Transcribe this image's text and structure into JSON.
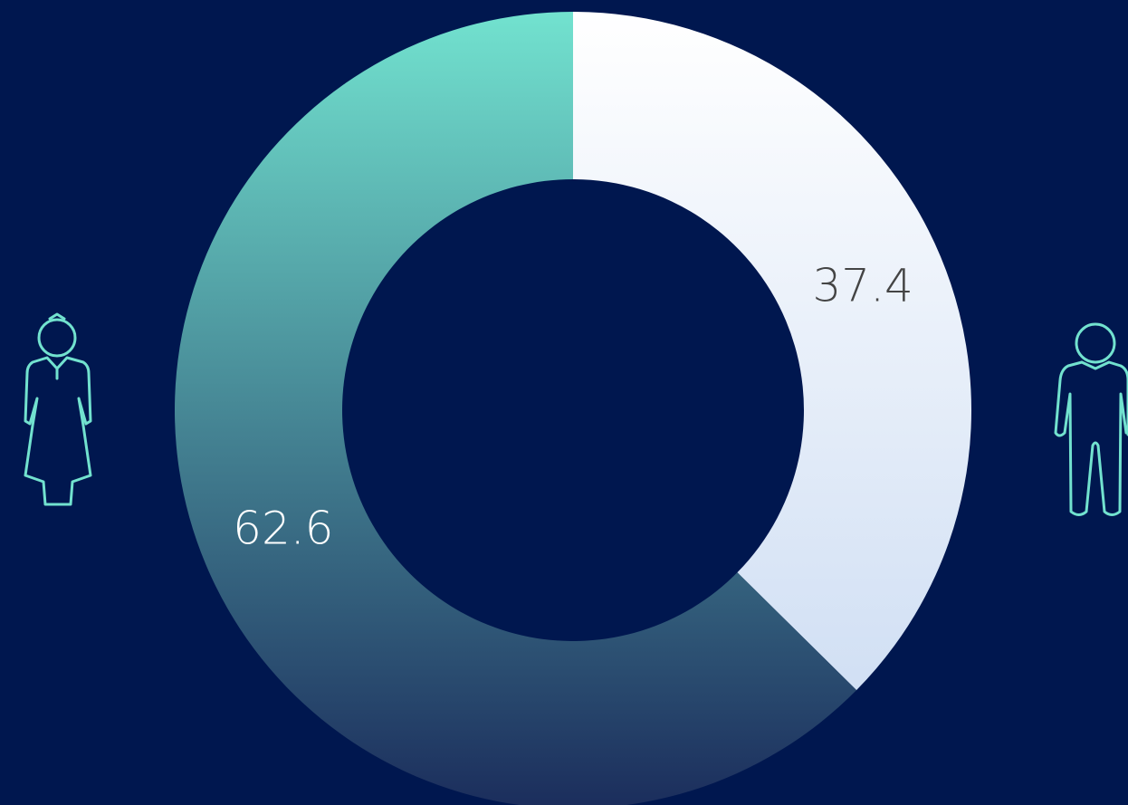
{
  "chart_data": {
    "type": "donut",
    "values": [
      37.4,
      62.6
    ],
    "gradients": [
      [
        "#ffffff",
        "#c9daf2"
      ],
      [
        "#72e2cf",
        "#1b2d5c"
      ]
    ],
    "label_colors": [
      "#444444",
      "#ffffff"
    ]
  }
}
